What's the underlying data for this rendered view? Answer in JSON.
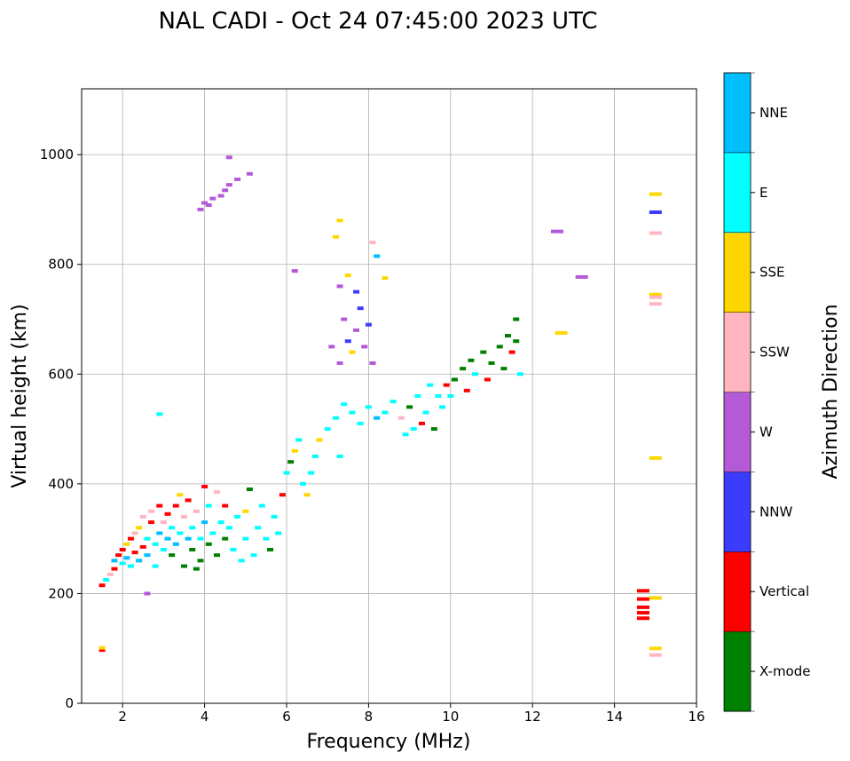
{
  "chart_data": {
    "type": "scatter",
    "title": "NAL CADI - Oct 24 07:45:00 2023 UTC",
    "xlabel": "Frequency (MHz)",
    "ylabel": "Virtual height (km)",
    "xlim": [
      1,
      16
    ],
    "ylim": [
      0,
      1120
    ],
    "xticks": [
      2,
      4,
      6,
      8,
      10,
      12,
      14,
      16
    ],
    "yticks": [
      0,
      200,
      400,
      600,
      800,
      1000
    ],
    "grid": true,
    "colorbar": {
      "label": "Azimuth Direction",
      "categories": [
        "X-mode",
        "Vertical",
        "NNW",
        "W",
        "SSW",
        "SSE",
        "E",
        "NNE"
      ],
      "colors": [
        "#008000",
        "#ff0000",
        "#3c3cff",
        "#b45ad8",
        "#ffb6c1",
        "#ffd700",
        "#00ffff",
        "#00bfff"
      ]
    },
    "points_format": "[frequency_MHz, virtual_height_km, category_index]",
    "points": [
      [
        1.5,
        97,
        1
      ],
      [
        1.5,
        101,
        5
      ],
      [
        1.5,
        215,
        1
      ],
      [
        1.6,
        225,
        6
      ],
      [
        1.7,
        235,
        4
      ],
      [
        1.8,
        245,
        1
      ],
      [
        1.8,
        260,
        7
      ],
      [
        1.9,
        270,
        1
      ],
      [
        2.0,
        255,
        6
      ],
      [
        2.0,
        280,
        1
      ],
      [
        2.1,
        290,
        5
      ],
      [
        2.1,
        265,
        7
      ],
      [
        2.2,
        300,
        1
      ],
      [
        2.2,
        250,
        6
      ],
      [
        2.3,
        275,
        1
      ],
      [
        2.3,
        310,
        4
      ],
      [
        2.4,
        260,
        7
      ],
      [
        2.4,
        320,
        5
      ],
      [
        2.5,
        285,
        1
      ],
      [
        2.5,
        340,
        4
      ],
      [
        2.6,
        300,
        6
      ],
      [
        2.6,
        270,
        7
      ],
      [
        2.7,
        330,
        1
      ],
      [
        2.7,
        350,
        4
      ],
      [
        2.8,
        290,
        6
      ],
      [
        2.8,
        250,
        6
      ],
      [
        2.9,
        310,
        7
      ],
      [
        2.9,
        360,
        1
      ],
      [
        3.0,
        280,
        6
      ],
      [
        3.0,
        330,
        4
      ],
      [
        3.1,
        300,
        7
      ],
      [
        3.1,
        345,
        1
      ],
      [
        3.2,
        320,
        6
      ],
      [
        3.2,
        270,
        0
      ],
      [
        3.3,
        360,
        1
      ],
      [
        3.3,
        290,
        7
      ],
      [
        3.4,
        310,
        6
      ],
      [
        3.4,
        380,
        5
      ],
      [
        3.5,
        250,
        0
      ],
      [
        3.5,
        340,
        4
      ],
      [
        3.6,
        300,
        7
      ],
      [
        3.6,
        370,
        1
      ],
      [
        3.7,
        280,
        0
      ],
      [
        3.7,
        320,
        6
      ],
      [
        3.8,
        245,
        0
      ],
      [
        3.8,
        350,
        4
      ],
      [
        3.9,
        300,
        6
      ],
      [
        3.9,
        260,
        0
      ],
      [
        4.0,
        330,
        7
      ],
      [
        4.0,
        395,
        1
      ],
      [
        4.1,
        290,
        0
      ],
      [
        4.1,
        360,
        6
      ],
      [
        4.2,
        310,
        6
      ],
      [
        4.3,
        270,
        0
      ],
      [
        4.3,
        385,
        4
      ],
      [
        4.4,
        330,
        6
      ],
      [
        4.5,
        300,
        0
      ],
      [
        4.5,
        360,
        1
      ],
      [
        4.6,
        320,
        6
      ],
      [
        4.7,
        280,
        6
      ],
      [
        4.8,
        340,
        6
      ],
      [
        4.9,
        260,
        6
      ],
      [
        5.0,
        300,
        6
      ],
      [
        5.0,
        350,
        5
      ],
      [
        5.1,
        390,
        0
      ],
      [
        5.2,
        270,
        6
      ],
      [
        5.3,
        320,
        6
      ],
      [
        5.4,
        360,
        6
      ],
      [
        5.5,
        300,
        6
      ],
      [
        5.6,
        280,
        0
      ],
      [
        5.7,
        340,
        6
      ],
      [
        5.8,
        310,
        6
      ],
      [
        5.9,
        380,
        1
      ],
      [
        6.0,
        420,
        6
      ],
      [
        6.1,
        440,
        0
      ],
      [
        6.2,
        460,
        5
      ],
      [
        6.3,
        480,
        6
      ],
      [
        6.4,
        400,
        6
      ],
      [
        6.5,
        380,
        5
      ],
      [
        6.6,
        420,
        6
      ],
      [
        6.7,
        450,
        6
      ],
      [
        6.8,
        480,
        5
      ],
      [
        7.0,
        500,
        6
      ],
      [
        7.2,
        520,
        6
      ],
      [
        7.3,
        450,
        6
      ],
      [
        7.4,
        545,
        6
      ],
      [
        7.6,
        530,
        6
      ],
      [
        7.8,
        510,
        6
      ],
      [
        8.0,
        540,
        6
      ],
      [
        8.2,
        520,
        7
      ],
      [
        8.4,
        530,
        6
      ],
      [
        8.6,
        550,
        6
      ],
      [
        8.8,
        520,
        4
      ],
      [
        8.9,
        490,
        6
      ],
      [
        9.0,
        540,
        0
      ],
      [
        9.1,
        500,
        6
      ],
      [
        9.2,
        560,
        6
      ],
      [
        9.3,
        510,
        1
      ],
      [
        9.4,
        530,
        6
      ],
      [
        9.5,
        580,
        6
      ],
      [
        9.6,
        500,
        0
      ],
      [
        9.7,
        560,
        6
      ],
      [
        9.8,
        540,
        6
      ],
      [
        9.9,
        580,
        1
      ],
      [
        10.0,
        560,
        6
      ],
      [
        10.1,
        590,
        0
      ],
      [
        10.3,
        610,
        0
      ],
      [
        10.4,
        570,
        1
      ],
      [
        10.5,
        625,
        0
      ],
      [
        10.6,
        600,
        6
      ],
      [
        10.8,
        640,
        0
      ],
      [
        10.9,
        590,
        1
      ],
      [
        11.0,
        620,
        0
      ],
      [
        11.2,
        650,
        0
      ],
      [
        11.3,
        610,
        0
      ],
      [
        11.4,
        670,
        0
      ],
      [
        11.5,
        640,
        1
      ],
      [
        11.6,
        660,
        0
      ],
      [
        11.6,
        700,
        0
      ],
      [
        11.7,
        600,
        6
      ],
      [
        7.1,
        650,
        3
      ],
      [
        7.3,
        620,
        3
      ],
      [
        7.4,
        700,
        3
      ],
      [
        7.5,
        660,
        2
      ],
      [
        7.6,
        640,
        5
      ],
      [
        7.7,
        680,
        3
      ],
      [
        7.8,
        720,
        2
      ],
      [
        7.9,
        650,
        3
      ],
      [
        8.0,
        690,
        2
      ],
      [
        8.1,
        620,
        3
      ],
      [
        7.3,
        760,
        3
      ],
      [
        7.2,
        850,
        5
      ],
      [
        7.3,
        880,
        5
      ],
      [
        8.1,
        840,
        4
      ],
      [
        8.2,
        815,
        7
      ],
      [
        8.4,
        775,
        5
      ],
      [
        7.5,
        780,
        5
      ],
      [
        7.7,
        750,
        2
      ],
      [
        3.9,
        900,
        3
      ],
      [
        4.0,
        912,
        3
      ],
      [
        4.1,
        908,
        3
      ],
      [
        4.2,
        920,
        3
      ],
      [
        4.4,
        925,
        3
      ],
      [
        4.5,
        935,
        3
      ],
      [
        4.6,
        945,
        3
      ],
      [
        4.8,
        955,
        3
      ],
      [
        5.1,
        965,
        3
      ],
      [
        4.6,
        995,
        3
      ],
      [
        6.2,
        788,
        3
      ],
      [
        12.6,
        860,
        3
      ],
      [
        13.2,
        777,
        3
      ],
      [
        12.7,
        675,
        5
      ],
      [
        15.0,
        928,
        5
      ],
      [
        15.0,
        895,
        2
      ],
      [
        15.0,
        857,
        4
      ],
      [
        15.0,
        745,
        5
      ],
      [
        15.0,
        740,
        4
      ],
      [
        15.0,
        728,
        4
      ],
      [
        15.0,
        447,
        5
      ],
      [
        14.7,
        205,
        1
      ],
      [
        14.7,
        190,
        1
      ],
      [
        14.7,
        175,
        1
      ],
      [
        14.7,
        165,
        1
      ],
      [
        14.7,
        155,
        1
      ],
      [
        15.0,
        192,
        5
      ],
      [
        15.0,
        100,
        5
      ],
      [
        15.0,
        88,
        4
      ],
      [
        2.9,
        527,
        6
      ],
      [
        2.6,
        200,
        3
      ]
    ]
  }
}
